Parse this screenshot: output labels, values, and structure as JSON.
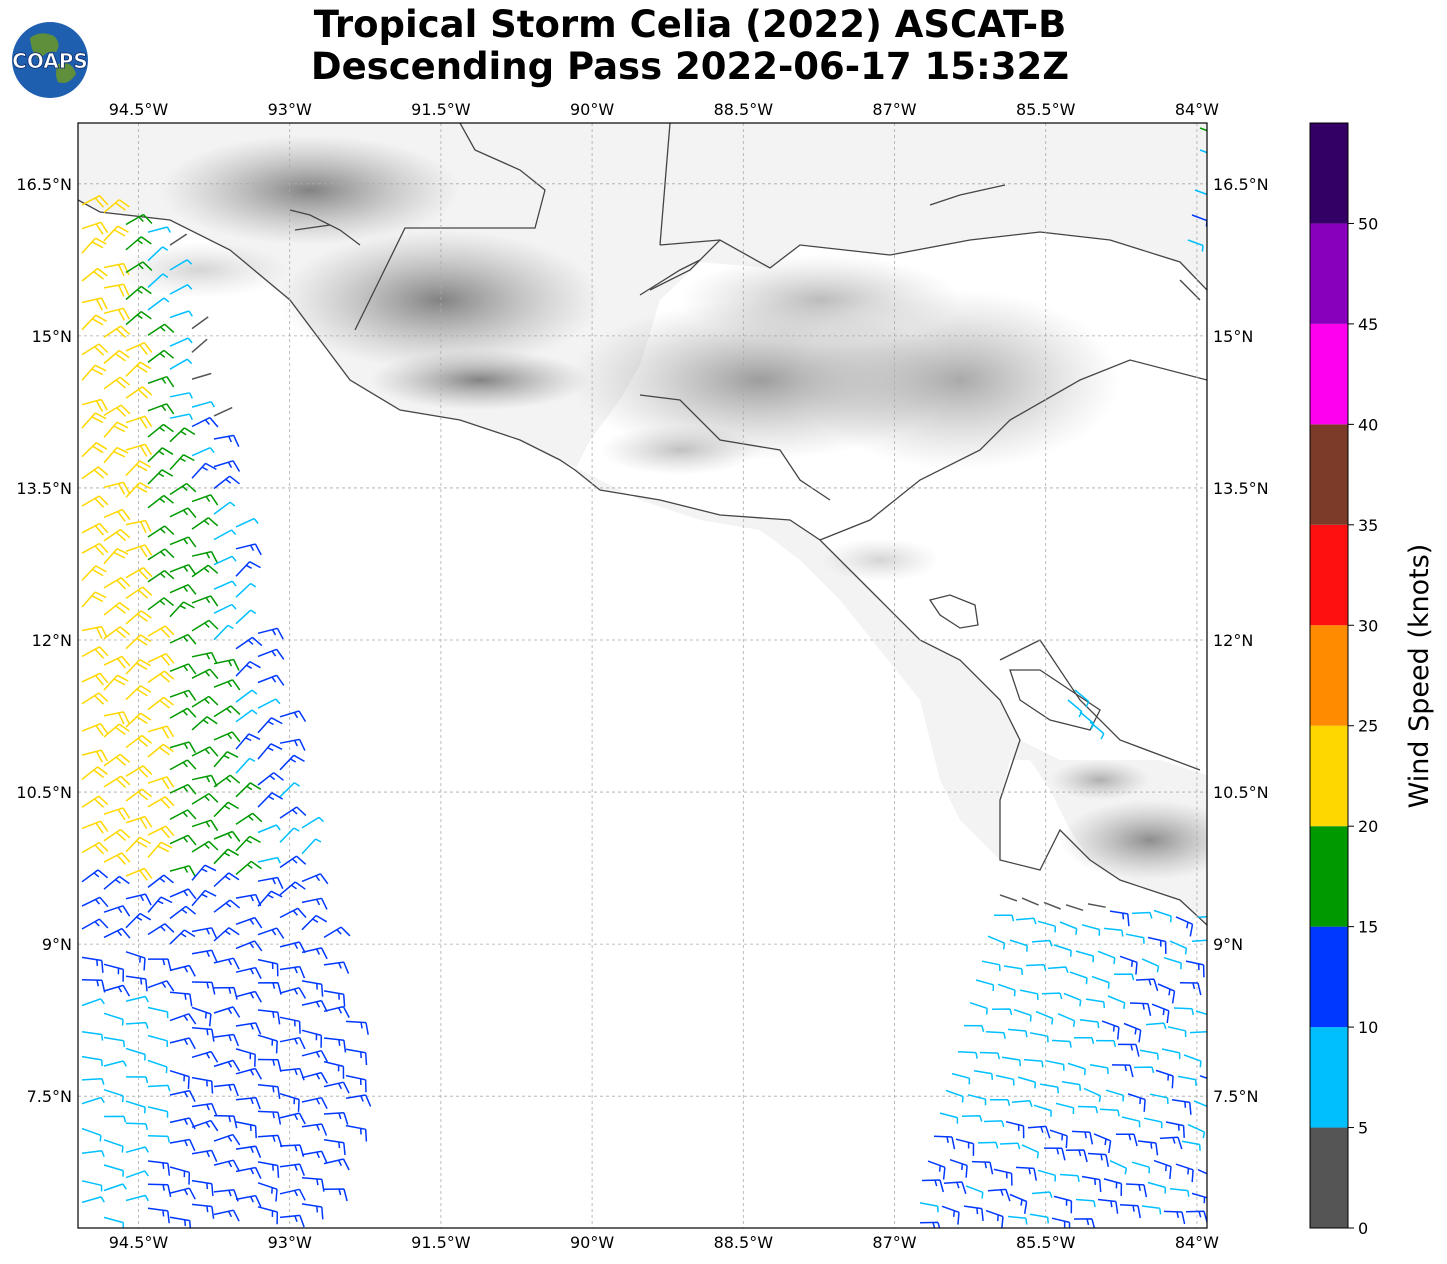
{
  "logo": {
    "text": "COAPS"
  },
  "title": {
    "line1": "Tropical Storm Celia (2022) ASCAT-B",
    "line2": "Descending Pass 2022-06-17 15:32Z"
  },
  "map": {
    "lon_range": [
      -95.1,
      -83.9
    ],
    "lat_range": [
      6.2,
      17.1
    ],
    "lon_ticks": [
      "94.5°W",
      "93°W",
      "91.5°W",
      "90°W",
      "88.5°W",
      "87°W",
      "85.5°W",
      "84°W"
    ],
    "lon_tick_values": [
      -94.5,
      -93,
      -91.5,
      -90,
      -88.5,
      -87,
      -85.5,
      -84
    ],
    "lat_ticks": [
      "16.5°N",
      "15°N",
      "13.5°N",
      "12°N",
      "10.5°N",
      "9°N",
      "7.5°N"
    ],
    "lat_tick_values": [
      16.5,
      15,
      13.5,
      12,
      10.5,
      9,
      7.5
    ],
    "grid": true
  },
  "colorbar": {
    "label": "Wind Speed (knots)",
    "ticks": [
      "0",
      "5",
      "10",
      "15",
      "20",
      "25",
      "30",
      "35",
      "40",
      "45",
      "50"
    ],
    "colors": [
      "#555555",
      "#00bfff",
      "#0038ff",
      "#009900",
      "#ffd700",
      "#ff8c00",
      "#ff1010",
      "#7b3b28",
      "#ff00ee",
      "#8800bb",
      "#330066"
    ]
  }
}
